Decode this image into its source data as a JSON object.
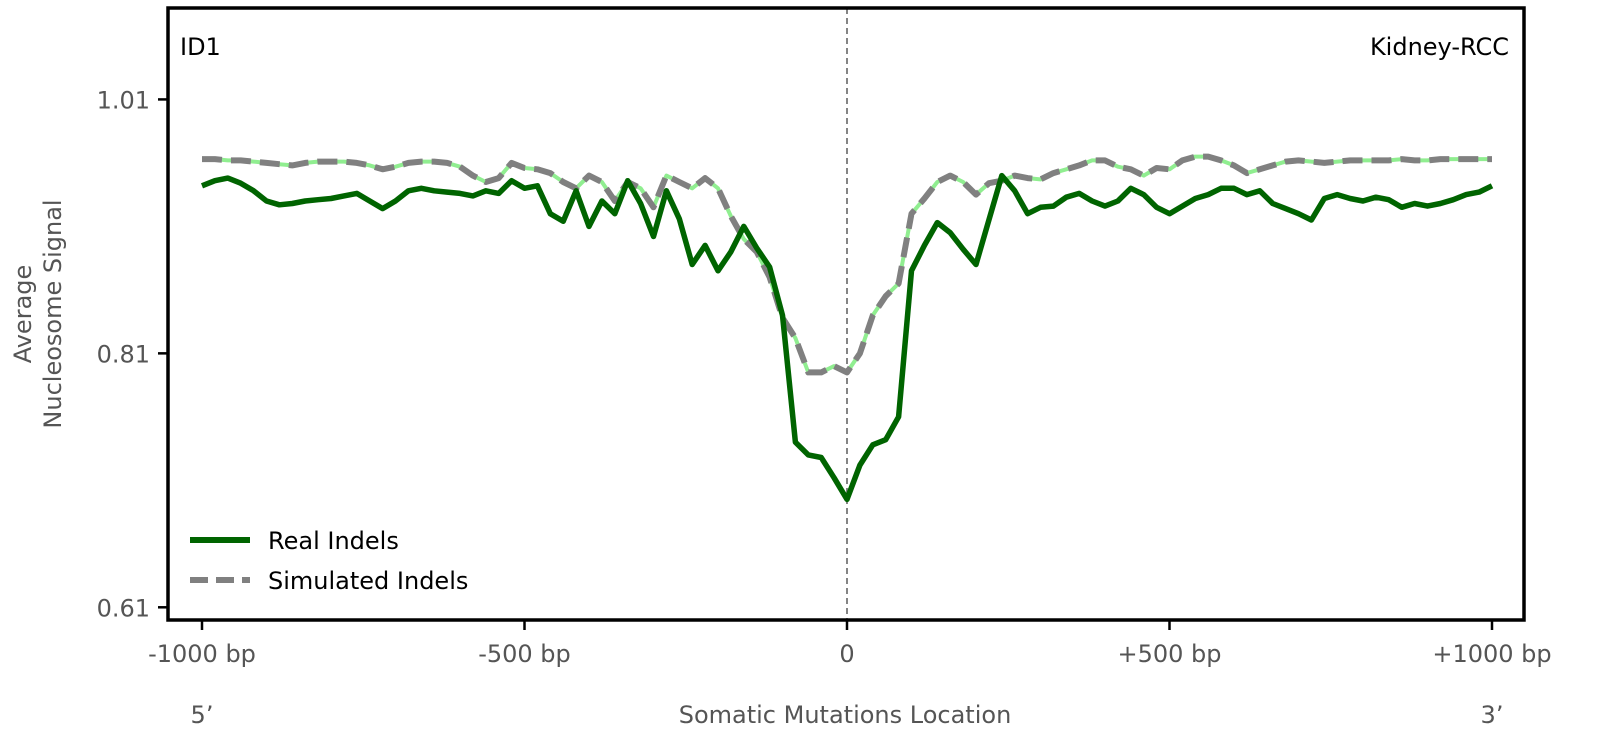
{
  "chart_data": {
    "type": "line",
    "title": "",
    "label_left": "ID1",
    "label_right": "Kidney-RCC",
    "ylabel_line1": "Average",
    "ylabel_line2": "Nucleosome Signal",
    "xlabel": "Somatic Mutations Location",
    "end_left": "5’",
    "end_right": "3’",
    "xlim": [
      -1000,
      1000
    ],
    "ylim": [
      0.6,
      1.082
    ],
    "yticks": [
      0.61,
      0.81,
      1.01
    ],
    "ytick_labels": [
      "0.61",
      "0.81",
      "1.01"
    ],
    "xticks": [
      -1000,
      -500,
      0,
      500,
      1000
    ],
    "xtick_labels": [
      "-1000 bp",
      "-500 bp",
      "0",
      "+500 bp",
      "+1000 bp"
    ],
    "center_line": 0,
    "legend_position": "lower-left",
    "series": [
      {
        "name": "Real Indels",
        "color": "#006400",
        "style": "solid",
        "x": [
          -1000,
          -980,
          -960,
          -940,
          -920,
          -900,
          -880,
          -860,
          -840,
          -820,
          -800,
          -780,
          -760,
          -740,
          -720,
          -700,
          -680,
          -660,
          -640,
          -620,
          -600,
          -580,
          -560,
          -540,
          -520,
          -500,
          -480,
          -460,
          -440,
          -420,
          -400,
          -380,
          -360,
          -340,
          -320,
          -300,
          -280,
          -260,
          -240,
          -220,
          -200,
          -180,
          -160,
          -140,
          -120,
          -100,
          -80,
          -60,
          -40,
          -20,
          0,
          20,
          40,
          60,
          80,
          100,
          120,
          140,
          160,
          180,
          200,
          220,
          240,
          260,
          280,
          300,
          320,
          340,
          360,
          380,
          400,
          420,
          440,
          460,
          480,
          500,
          520,
          540,
          560,
          580,
          600,
          620,
          640,
          660,
          680,
          700,
          720,
          740,
          760,
          780,
          800,
          820,
          840,
          860,
          880,
          900,
          920,
          940,
          960,
          980,
          1000
        ],
        "values": [
          0.942,
          0.946,
          0.948,
          0.944,
          0.938,
          0.93,
          0.927,
          0.928,
          0.93,
          0.931,
          0.932,
          0.934,
          0.936,
          0.93,
          0.924,
          0.93,
          0.938,
          0.94,
          0.938,
          0.937,
          0.936,
          0.934,
          0.938,
          0.936,
          0.946,
          0.94,
          0.942,
          0.92,
          0.914,
          0.938,
          0.91,
          0.93,
          0.92,
          0.946,
          0.928,
          0.902,
          0.938,
          0.916,
          0.88,
          0.895,
          0.875,
          0.89,
          0.91,
          0.893,
          0.878,
          0.84,
          0.74,
          0.73,
          0.728,
          0.712,
          0.695,
          0.722,
          0.738,
          0.742,
          0.76,
          0.875,
          0.895,
          0.913,
          0.905,
          0.892,
          0.88,
          0.915,
          0.95,
          0.938,
          0.92,
          0.925,
          0.926,
          0.933,
          0.936,
          0.93,
          0.926,
          0.93,
          0.94,
          0.935,
          0.925,
          0.92,
          0.926,
          0.932,
          0.935,
          0.94,
          0.94,
          0.935,
          0.938,
          0.928,
          0.924,
          0.92,
          0.915,
          0.932,
          0.935,
          0.932,
          0.93,
          0.933,
          0.931,
          0.925,
          0.928,
          0.926,
          0.928,
          0.931,
          0.935,
          0.937,
          0.942
        ]
      },
      {
        "name": "Simulated Indels",
        "color": "#808080",
        "accent_color": "#90ee90",
        "style": "dashed",
        "x": [
          -1000,
          -980,
          -960,
          -940,
          -920,
          -900,
          -880,
          -860,
          -840,
          -820,
          -800,
          -780,
          -760,
          -740,
          -720,
          -700,
          -680,
          -660,
          -640,
          -620,
          -600,
          -580,
          -560,
          -540,
          -520,
          -500,
          -480,
          -460,
          -440,
          -420,
          -400,
          -380,
          -360,
          -340,
          -320,
          -300,
          -280,
          -260,
          -240,
          -220,
          -200,
          -180,
          -160,
          -140,
          -120,
          -100,
          -80,
          -60,
          -40,
          -20,
          0,
          20,
          40,
          60,
          80,
          100,
          120,
          140,
          160,
          180,
          200,
          220,
          240,
          260,
          280,
          300,
          320,
          340,
          360,
          380,
          400,
          420,
          440,
          460,
          480,
          500,
          520,
          540,
          560,
          580,
          600,
          620,
          640,
          660,
          680,
          700,
          720,
          740,
          760,
          780,
          800,
          820,
          840,
          860,
          880,
          900,
          920,
          940,
          960,
          980,
          1000
        ],
        "values": [
          0.963,
          0.963,
          0.962,
          0.962,
          0.961,
          0.96,
          0.959,
          0.958,
          0.96,
          0.961,
          0.961,
          0.961,
          0.96,
          0.958,
          0.955,
          0.957,
          0.96,
          0.961,
          0.961,
          0.96,
          0.957,
          0.95,
          0.945,
          0.948,
          0.96,
          0.956,
          0.955,
          0.952,
          0.945,
          0.94,
          0.95,
          0.945,
          0.93,
          0.945,
          0.94,
          0.925,
          0.95,
          0.945,
          0.94,
          0.948,
          0.94,
          0.918,
          0.9,
          0.89,
          0.87,
          0.838,
          0.822,
          0.795,
          0.795,
          0.8,
          0.795,
          0.81,
          0.84,
          0.855,
          0.865,
          0.92,
          0.932,
          0.945,
          0.95,
          0.945,
          0.935,
          0.944,
          0.946,
          0.95,
          0.948,
          0.947,
          0.952,
          0.955,
          0.958,
          0.962,
          0.962,
          0.957,
          0.955,
          0.95,
          0.956,
          0.955,
          0.962,
          0.965,
          0.965,
          0.962,
          0.958,
          0.952,
          0.955,
          0.958,
          0.961,
          0.962,
          0.961,
          0.96,
          0.961,
          0.962,
          0.962,
          0.962,
          0.962,
          0.963,
          0.962,
          0.962,
          0.963,
          0.963,
          0.963,
          0.963,
          0.963
        ]
      }
    ]
  }
}
